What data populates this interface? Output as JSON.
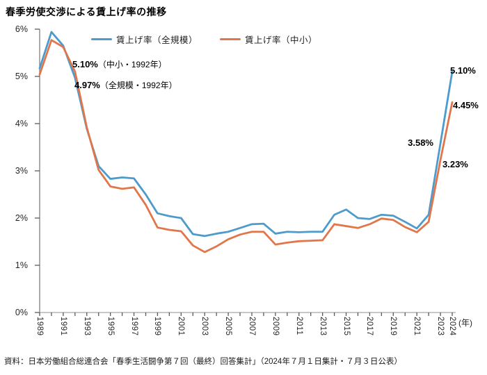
{
  "title": "春季労使交渉による賃上げ率の推移",
  "source": "資料：日本労働組合総連合会「春季生活闘争第７回（最終）回答集計」（2024年７月１日集計・７月３日公表）",
  "colors": {
    "all_firms_line": "#4C9BCC",
    "sme_line": "#E2764B",
    "y_axis": "#7f7f7f",
    "x_axis": "#a6a6a6",
    "ticks": "#595959"
  },
  "legend": [
    {
      "label": "賃上げ率（全規模）"
    },
    {
      "label": "賃上げ率（中小）"
    }
  ],
  "y_axis": {
    "ticks": [
      "0%",
      "1%",
      "2%",
      "3%",
      "4%",
      "5%",
      "6%"
    ]
  },
  "x_axis": {
    "tick_labels": [
      "1989",
      "1991",
      "1993",
      "1995",
      "1997",
      "1999",
      "2001",
      "2003",
      "2005",
      "2007",
      "2009",
      "2011",
      "2013",
      "2015",
      "2017",
      "2019",
      "2021",
      "2023",
      "2024"
    ],
    "unit_label": "(年)"
  },
  "annotations": {
    "peak_1992_sme": {
      "value": "5.10%",
      "suffix": "（中小・1992年）"
    },
    "peak_1992_all": {
      "value": "4.97%",
      "suffix": "（全規模・1992年）"
    },
    "y2023_all": {
      "value": "3.58%"
    },
    "y2023_sme": {
      "value": "3.23%"
    },
    "y2024_all": {
      "value": "5.10%"
    },
    "y2024_sme": {
      "value": "4.45%"
    }
  },
  "chart_data": {
    "type": "line",
    "title": "春季労使交渉による賃上げ率の推移",
    "xlabel": "年",
    "ylabel": "%",
    "ylim": [
      0,
      6
    ],
    "grid": false,
    "legend_position": "top",
    "x": [
      1989,
      1990,
      1991,
      1992,
      1993,
      1994,
      1995,
      1996,
      1997,
      1998,
      1999,
      2000,
      2001,
      2002,
      2003,
      2004,
      2005,
      2006,
      2007,
      2008,
      2009,
      2010,
      2011,
      2012,
      2013,
      2014,
      2015,
      2016,
      2017,
      2018,
      2019,
      2020,
      2021,
      2022,
      2023,
      2024
    ],
    "series": [
      {
        "name": "賃上げ率（全規模）",
        "color": "#4C9BCC",
        "values": [
          5.17,
          5.94,
          5.65,
          4.97,
          3.89,
          3.1,
          2.83,
          2.86,
          2.84,
          2.5,
          2.1,
          2.04,
          2.0,
          1.66,
          1.62,
          1.67,
          1.71,
          1.79,
          1.87,
          1.88,
          1.67,
          1.71,
          1.7,
          1.71,
          1.71,
          2.07,
          2.18,
          2.0,
          1.98,
          2.07,
          2.05,
          1.92,
          1.78,
          2.07,
          3.58,
          5.1
        ]
      },
      {
        "name": "賃上げ率（中小）",
        "color": "#E2764B",
        "values": [
          5.04,
          5.77,
          5.62,
          5.1,
          3.92,
          3.02,
          2.67,
          2.62,
          2.65,
          2.28,
          1.8,
          1.75,
          1.72,
          1.42,
          1.28,
          1.4,
          1.55,
          1.65,
          1.71,
          1.71,
          1.44,
          1.48,
          1.51,
          1.52,
          1.53,
          1.87,
          1.83,
          1.79,
          1.87,
          1.99,
          1.96,
          1.81,
          1.7,
          1.92,
          3.23,
          4.45
        ]
      }
    ]
  }
}
